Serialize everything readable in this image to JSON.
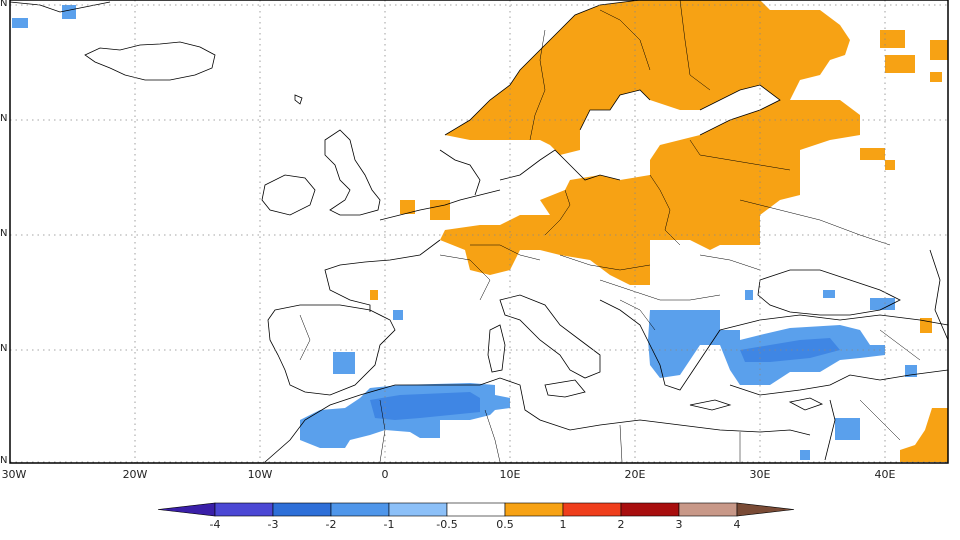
{
  "map": {
    "lon_ticks": [
      {
        "label": "30W",
        "lon": -30
      },
      {
        "label": "20W",
        "lon": -20
      },
      {
        "label": "10W",
        "lon": -10
      },
      {
        "label": "0",
        "lon": 0
      },
      {
        "label": "10E",
        "lon": 10
      },
      {
        "label": "20E",
        "lon": 20
      },
      {
        "label": "30E",
        "lon": 30
      },
      {
        "label": "40E",
        "lon": 40
      }
    ],
    "lat_ticks": [
      {
        "label": "N"
      },
      {
        "label": "N"
      },
      {
        "label": "N"
      },
      {
        "label": "N"
      },
      {
        "label": "N"
      }
    ]
  },
  "colorbar": {
    "boundaries": [
      "-4",
      "-3",
      "-2",
      "-1",
      "-0.5",
      "0.5",
      "1",
      "2",
      "3",
      "4"
    ],
    "colors": [
      "#3a1fa8",
      "#4b47d4",
      "#2e6fd8",
      "#4f96ea",
      "#8cc0f8",
      "#ffffff",
      "#f7a214",
      "#ef3e1c",
      "#a80e0e",
      "#c89888",
      "#7a4b36"
    ]
  },
  "colors": {
    "positive_anomaly": "#f7a214",
    "negative_anomaly": "#5aa0ec",
    "negative_anomaly_strong": "#3f86e4",
    "coastline": "#000000",
    "grid": "#888888"
  }
}
